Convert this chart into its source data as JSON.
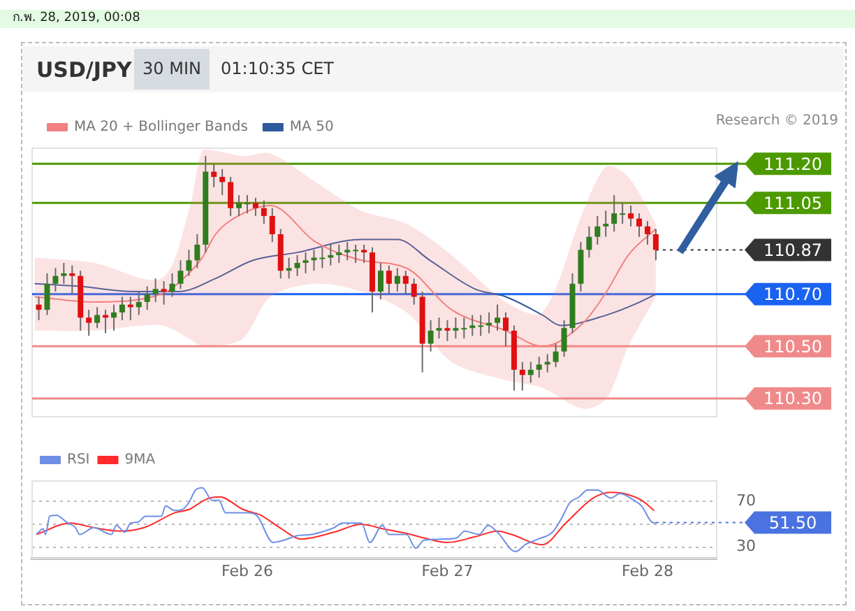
{
  "chart_data": [
    {
      "type": "candlestick",
      "title": "USD/JPY",
      "annotations": [
        "ก.พ. 28, 2019, 00:08",
        "30 MIN",
        "01:10:35 CET",
        "Research © 2019"
      ],
      "x": [
        "2019-02-24T23:00",
        "2019-02-25T00:00",
        "2019-02-25T01:00",
        "2019-02-25T02:00",
        "2019-02-25T03:00",
        "2019-02-25T04:00",
        "2019-02-25T05:00",
        "2019-02-25T06:00",
        "2019-02-25T07:00",
        "2019-02-25T08:00",
        "2019-02-25T09:00",
        "2019-02-25T10:00",
        "2019-02-25T11:00",
        "2019-02-25T12:00",
        "2019-02-25T13:00",
        "2019-02-25T14:00",
        "2019-02-25T15:00",
        "2019-02-25T16:00",
        "2019-02-25T17:00",
        "2019-02-25T18:00",
        "2019-02-25T19:00",
        "2019-02-25T20:00",
        "2019-02-25T21:00",
        "2019-02-25T22:00",
        "2019-02-25T23:00",
        "2019-02-26T00:00",
        "2019-02-26T01:00",
        "2019-02-26T02:00",
        "2019-02-26T03:00",
        "2019-02-26T04:00",
        "2019-02-26T05:00",
        "2019-02-26T06:00",
        "2019-02-26T07:00",
        "2019-02-26T08:00",
        "2019-02-26T09:00",
        "2019-02-26T10:00",
        "2019-02-26T11:00",
        "2019-02-26T12:00",
        "2019-02-26T13:00",
        "2019-02-26T14:00",
        "2019-02-26T15:00",
        "2019-02-26T16:00",
        "2019-02-26T17:00",
        "2019-02-26T18:00",
        "2019-02-26T19:00",
        "2019-02-26T20:00",
        "2019-02-26T21:00",
        "2019-02-26T22:00",
        "2019-02-26T23:00",
        "2019-02-27T00:00",
        "2019-02-27T01:00",
        "2019-02-27T02:00",
        "2019-02-27T03:00",
        "2019-02-27T04:00",
        "2019-02-27T05:00",
        "2019-02-27T06:00",
        "2019-02-27T07:00",
        "2019-02-27T08:00",
        "2019-02-27T09:00",
        "2019-02-27T10:00",
        "2019-02-27T11:00",
        "2019-02-27T12:00",
        "2019-02-27T13:00",
        "2019-02-27T14:00",
        "2019-02-27T15:00",
        "2019-02-27T16:00",
        "2019-02-27T17:00",
        "2019-02-27T18:00",
        "2019-02-27T19:00",
        "2019-02-27T20:00",
        "2019-02-27T21:00",
        "2019-02-27T22:00",
        "2019-02-27T23:00",
        "2019-02-28T00:00",
        "2019-02-28T01:00"
      ],
      "ohlc": [
        [
          110.66,
          110.69,
          110.6,
          110.64
        ],
        [
          110.64,
          110.78,
          110.62,
          110.74
        ],
        [
          110.74,
          110.8,
          110.71,
          110.77
        ],
        [
          110.77,
          110.82,
          110.74,
          110.78
        ],
        [
          110.78,
          110.81,
          110.7,
          110.77
        ],
        [
          110.77,
          110.79,
          110.56,
          110.61
        ],
        [
          110.61,
          110.64,
          110.54,
          110.59
        ],
        [
          110.59,
          110.65,
          110.57,
          110.62
        ],
        [
          110.62,
          110.64,
          110.55,
          110.61
        ],
        [
          110.61,
          110.66,
          110.56,
          110.63
        ],
        [
          110.63,
          110.69,
          110.6,
          110.66
        ],
        [
          110.66,
          110.69,
          110.6,
          110.65
        ],
        [
          110.65,
          110.71,
          110.62,
          110.67
        ],
        [
          110.67,
          110.73,
          110.64,
          110.7
        ],
        [
          110.7,
          110.76,
          110.67,
          110.72
        ],
        [
          110.72,
          110.75,
          110.66,
          110.71
        ],
        [
          110.71,
          110.78,
          110.69,
          110.74
        ],
        [
          110.74,
          110.83,
          110.72,
          110.79
        ],
        [
          110.79,
          110.87,
          110.77,
          110.83
        ],
        [
          110.83,
          110.93,
          110.8,
          110.89
        ],
        [
          110.89,
          111.23,
          110.86,
          111.17
        ],
        [
          111.17,
          111.2,
          111.11,
          111.15
        ],
        [
          111.15,
          111.18,
          111.08,
          111.13
        ],
        [
          111.13,
          111.15,
          111.0,
          111.03
        ],
        [
          111.03,
          111.08,
          111.0,
          111.05
        ],
        [
          111.05,
          111.08,
          111.01,
          111.05
        ],
        [
          111.05,
          111.07,
          111.0,
          111.03
        ],
        [
          111.03,
          111.06,
          110.97,
          111.0
        ],
        [
          111.0,
          111.03,
          110.9,
          110.93
        ],
        [
          110.93,
          110.95,
          110.76,
          110.79
        ],
        [
          110.79,
          110.84,
          110.76,
          110.8
        ],
        [
          110.8,
          110.85,
          110.77,
          110.82
        ],
        [
          110.82,
          110.86,
          110.78,
          110.83
        ],
        [
          110.83,
          110.87,
          110.79,
          110.84
        ],
        [
          110.84,
          110.88,
          110.8,
          110.84
        ],
        [
          110.84,
          110.89,
          110.81,
          110.85
        ],
        [
          110.85,
          110.89,
          110.82,
          110.86
        ],
        [
          110.86,
          110.9,
          110.83,
          110.87
        ],
        [
          110.87,
          110.89,
          110.82,
          110.87
        ],
        [
          110.87,
          110.89,
          110.82,
          110.86
        ],
        [
          110.86,
          110.88,
          110.63,
          110.71
        ],
        [
          110.71,
          110.82,
          110.68,
          110.79
        ],
        [
          110.79,
          110.81,
          110.7,
          110.74
        ],
        [
          110.74,
          110.8,
          110.71,
          110.77
        ],
        [
          110.77,
          110.79,
          110.7,
          110.74
        ],
        [
          110.74,
          110.76,
          110.66,
          110.69
        ],
        [
          110.69,
          110.71,
          110.4,
          110.51
        ],
        [
          110.51,
          110.6,
          110.48,
          110.56
        ],
        [
          110.56,
          110.61,
          110.53,
          110.57
        ],
        [
          110.57,
          110.6,
          110.52,
          110.56
        ],
        [
          110.56,
          110.61,
          110.53,
          110.57
        ],
        [
          110.57,
          110.61,
          110.53,
          110.57
        ],
        [
          110.57,
          110.62,
          110.54,
          110.58
        ],
        [
          110.58,
          110.62,
          110.54,
          110.58
        ],
        [
          110.58,
          110.63,
          110.55,
          110.59
        ],
        [
          110.59,
          110.66,
          110.56,
          110.61
        ],
        [
          110.61,
          110.63,
          110.5,
          110.56
        ],
        [
          110.56,
          110.58,
          110.33,
          110.41
        ],
        [
          110.41,
          110.44,
          110.33,
          110.39
        ],
        [
          110.39,
          110.44,
          110.36,
          110.41
        ],
        [
          110.41,
          110.46,
          110.38,
          110.43
        ],
        [
          110.43,
          110.47,
          110.4,
          110.44
        ],
        [
          110.44,
          110.51,
          110.42,
          110.48
        ],
        [
          110.48,
          110.6,
          110.46,
          110.57
        ],
        [
          110.57,
          110.78,
          110.55,
          110.74
        ],
        [
          110.74,
          110.9,
          110.71,
          110.87
        ],
        [
          110.87,
          110.96,
          110.84,
          110.92
        ],
        [
          110.92,
          111.0,
          110.89,
          110.96
        ],
        [
          110.96,
          111.02,
          110.92,
          110.97
        ],
        [
          110.97,
          111.08,
          110.94,
          111.01
        ],
        [
          111.01,
          111.05,
          110.97,
          111.01
        ],
        [
          111.01,
          111.04,
          110.96,
          110.99
        ],
        [
          110.99,
          111.01,
          110.92,
          110.96
        ],
        [
          110.96,
          110.98,
          110.89,
          110.93
        ],
        [
          110.93,
          110.95,
          110.83,
          110.87
        ]
      ],
      "series": [
        {
          "name": "MA 20 + Bollinger Bands",
          "type": "line",
          "color": "#f28080",
          "x": [
            "2019-02-24T22:30",
            "2019-02-25T05:36",
            "2019-02-25T13:42",
            "2019-02-25T17:00",
            "2019-02-25T18:36",
            "2019-02-25T20:12",
            "2019-02-25T23:30",
            "2019-02-26T02:48",
            "2019-02-26T08:12",
            "2019-02-26T13:42",
            "2019-02-26T19:06",
            "2019-02-27T00:30",
            "2019-02-27T07:00",
            "2019-02-27T11:24",
            "2019-02-27T16:18",
            "2019-02-27T19:06",
            "2019-02-27T21:42",
            "2019-02-28T01:00"
          ],
          "values": [
            110.69,
            110.67,
            110.7,
            110.78,
            110.84,
            110.93,
            111.01,
            111.04,
            110.9,
            110.83,
            110.8,
            110.64,
            110.56,
            110.5,
            110.59,
            110.71,
            110.85,
            110.95
          ],
          "upper": [
            110.84,
            110.82,
            110.76,
            111.02,
            111.25,
            111.25,
            111.23,
            111.24,
            111.13,
            111.02,
            110.97,
            110.85,
            110.67,
            110.63,
            111.02,
            111.19,
            111.15,
            110.97
          ],
          "lower": [
            110.56,
            110.56,
            110.58,
            110.53,
            110.5,
            110.5,
            110.53,
            110.69,
            110.74,
            110.71,
            110.63,
            110.44,
            110.37,
            110.34,
            110.26,
            110.3,
            110.5,
            110.69
          ]
        },
        {
          "name": "MA 50",
          "type": "line",
          "color": "#2f5a9e",
          "x": [
            "2019-02-24T22:30",
            "2019-02-25T03:54",
            "2019-02-25T10:24",
            "2019-02-25T15:48",
            "2019-02-25T20:12",
            "2019-02-26T00:42",
            "2019-02-26T06:00",
            "2019-02-26T13:42",
            "2019-02-26T18:00",
            "2019-02-26T21:54",
            "2019-02-27T03:18",
            "2019-02-27T07:00",
            "2019-02-27T11:24",
            "2019-02-27T13:36",
            "2019-02-27T19:06",
            "2019-02-27T22:24",
            "2019-02-28T01:00"
          ],
          "values": [
            110.74,
            110.73,
            110.71,
            110.71,
            110.76,
            110.83,
            110.86,
            110.91,
            110.91,
            110.83,
            110.72,
            110.69,
            110.62,
            110.58,
            110.62,
            110.66,
            110.7
          ]
        }
      ],
      "ref_lines": [
        {
          "axis": "y",
          "value": 111.2,
          "label": "111.20",
          "color": "#4c9a00"
        },
        {
          "axis": "y",
          "value": 111.05,
          "label": "111.05",
          "color": "#4c9a00"
        },
        {
          "axis": "y",
          "value": 110.87,
          "label": "110.87",
          "color": "#333333",
          "line_style": "dotted"
        },
        {
          "axis": "y",
          "value": 110.7,
          "label": "110.70",
          "color": "#1a62f0"
        },
        {
          "axis": "y",
          "value": 110.5,
          "label": "110.50",
          "color": "#f08a8a"
        },
        {
          "axis": "y",
          "value": 110.3,
          "label": "110.30",
          "color": "#f08a8a"
        }
      ],
      "xlim": [
        "2019-02-24T22:12",
        "2019-02-28T08:18"
      ],
      "ylim": [
        110.23,
        111.26
      ],
      "tick_labels": false,
      "legend": "top left",
      "marker": "none"
    },
    {
      "type": "line",
      "series": [
        {
          "name": "RSI",
          "color": "#6f8fe6",
          "x": [
            "2019-02-24T22:42",
            "2019-02-24T23:30",
            "2019-02-24T23:48",
            "2019-02-25T00:18",
            "2019-02-25T01:06",
            "2019-02-25T02:18",
            "2019-02-25T03:24",
            "2019-02-25T03:54",
            "2019-02-25T05:36",
            "2019-02-25T07:42",
            "2019-02-25T08:18",
            "2019-02-25T09:18",
            "2019-02-25T10:00",
            "2019-02-25T10:54",
            "2019-02-25T11:48",
            "2019-02-25T13:42",
            "2019-02-25T14:12",
            "2019-02-25T15:18",
            "2019-02-25T16:12",
            "2019-02-25T17:00",
            "2019-02-25T17:48",
            "2019-02-25T18:36",
            "2019-02-25T19:48",
            "2019-02-25T20:36",
            "2019-02-25T21:24",
            "2019-02-26T00:00",
            "2019-02-26T01:06",
            "2019-02-26T03:06",
            "2019-02-26T04:24",
            "2019-02-26T06:00",
            "2019-02-26T07:42",
            "2019-02-26T08:48",
            "2019-02-26T10:24",
            "2019-02-26T11:24",
            "2019-02-26T13:06",
            "2019-02-26T13:42",
            "2019-02-26T14:42",
            "2019-02-26T16:12",
            "2019-02-26T17:00",
            "2019-02-26T18:36",
            "2019-02-26T19:06",
            "2019-02-26T20:12",
            "2019-02-26T21:12",
            "2019-02-26T23:30",
            "2019-02-27T01:06",
            "2019-02-27T02:06",
            "2019-02-27T03:48",
            "2019-02-27T04:54",
            "2019-02-27T06:00",
            "2019-02-27T08:12",
            "2019-02-27T09:18",
            "2019-02-27T10:54",
            "2019-02-27T12:36",
            "2019-02-27T13:36",
            "2019-02-27T14:42",
            "2019-02-27T15:48",
            "2019-02-27T16:48",
            "2019-02-27T18:00",
            "2019-02-27T19:36",
            "2019-02-27T20:42",
            "2019-02-27T22:24",
            "2019-02-27T23:18",
            "2019-02-28T00:30",
            "2019-02-28T01:00"
          ],
          "values": [
            41,
            46,
            41,
            57,
            58,
            52,
            47,
            41,
            47,
            41,
            49,
            43,
            51,
            52,
            57,
            57,
            66,
            62,
            63,
            69,
            80,
            82,
            71,
            71,
            60,
            60,
            58,
            34,
            36,
            40,
            41,
            43,
            47,
            51,
            51,
            51,
            34,
            49,
            41,
            41,
            41,
            29,
            36,
            37,
            38,
            44,
            41,
            49,
            43,
            26,
            32,
            37,
            43,
            54,
            69,
            74,
            80,
            80,
            73,
            77,
            71,
            66,
            52,
            51
          ]
        },
        {
          "name": "9MA",
          "color": "#ff2a2a",
          "x": [
            "2019-02-24T22:42",
            "2019-02-25T02:48",
            "2019-02-25T05:36",
            "2019-02-25T08:48",
            "2019-02-25T11:36",
            "2019-02-25T15:18",
            "2019-02-25T17:00",
            "2019-02-25T19:06",
            "2019-02-25T20:42",
            "2019-02-25T23:30",
            "2019-02-26T01:36",
            "2019-02-26T03:54",
            "2019-02-26T06:30",
            "2019-02-26T10:24",
            "2019-02-26T13:42",
            "2019-02-26T16:18",
            "2019-02-26T19:06",
            "2019-02-26T21:12",
            "2019-02-27T00:00",
            "2019-02-27T03:18",
            "2019-02-27T06:00",
            "2019-02-27T07:42",
            "2019-02-27T11:24",
            "2019-02-27T14:12",
            "2019-02-27T17:30",
            "2019-02-27T19:36",
            "2019-02-27T21:12",
            "2019-02-27T23:18",
            "2019-02-28T00:48"
          ],
          "values": [
            41,
            51,
            47,
            44,
            47,
            60,
            63,
            72,
            74,
            63,
            58,
            47,
            37,
            43,
            50,
            46,
            42,
            38,
            34,
            39,
            44,
            41,
            32,
            51,
            73,
            78,
            77,
            71,
            62
          ]
        }
      ],
      "ref_lines": [
        {
          "axis": "y",
          "value": 51.5,
          "label": "51.50",
          "color": "#4a72e0",
          "line_style": "dotted"
        }
      ],
      "xlim": [
        "2019-02-24T22:12",
        "2019-02-28T08:18"
      ],
      "xticks": [
        {
          "value": "2019-02-26",
          "label": "Feb 26"
        },
        {
          "value": "2019-02-27",
          "label": "Feb 27"
        },
        {
          "value": "2019-02-28",
          "label": "Feb 28"
        }
      ],
      "ylim": [
        20,
        88
      ],
      "yticks": [
        30,
        {
          "value": 50,
          "label": null
        },
        70
      ],
      "grid": "y",
      "legend": "top left",
      "marker": "none"
    }
  ]
}
